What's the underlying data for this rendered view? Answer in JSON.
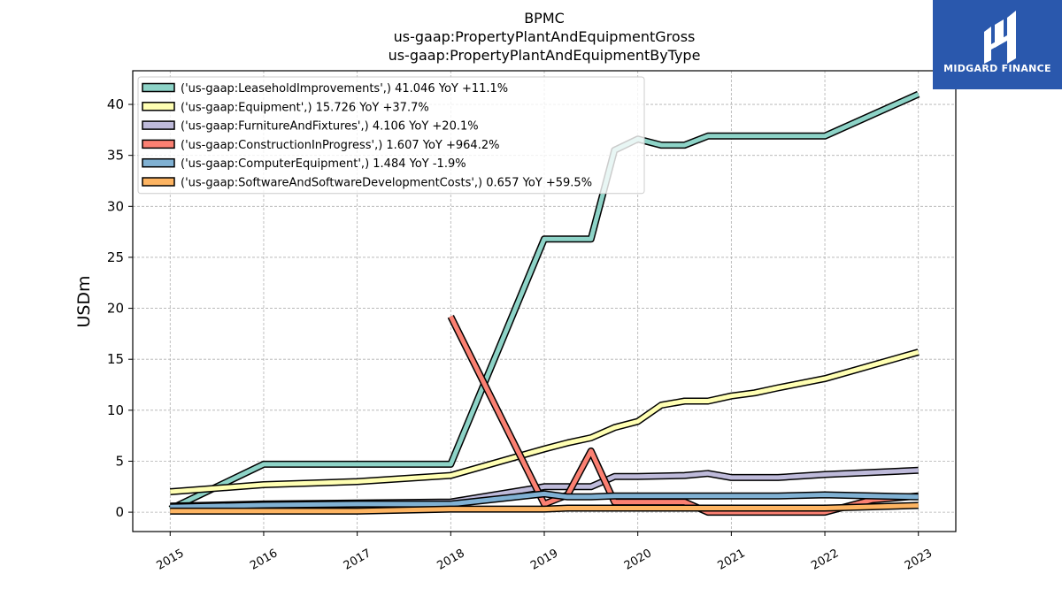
{
  "chart_data": {
    "type": "line",
    "title": [
      "BPMC",
      "us-gaap:PropertyPlantAndEquipmentGross",
      "us-gaap:PropertyPlantAndEquipmentByType"
    ],
    "ylabel": "USDm",
    "xlabel": "",
    "xlim": [
      2014.6,
      2023.4
    ],
    "ylim": [
      -1.9,
      43.3
    ],
    "x_ticks": [
      "2015",
      "2016",
      "2017",
      "2018",
      "2019",
      "2020",
      "2021",
      "2022",
      "2023"
    ],
    "y_ticks": [
      "0",
      "5",
      "10",
      "15",
      "20",
      "25",
      "30",
      "35",
      "40"
    ],
    "grid": true,
    "legend_position": "top-left",
    "colors": {
      "leasehold": "#8dd3c7",
      "equipment": "#ffffb3",
      "furniture": "#bebada",
      "construction": "#fb8072",
      "computer": "#80b1d3",
      "software": "#fdb462"
    },
    "series": [
      {
        "name": "('us-gaap:LeaseholdImprovements',) 41.046 YoY +11.1%",
        "color": "#8dd3c7",
        "points": [
          [
            2015.0,
            0.3
          ],
          [
            2016.0,
            4.7
          ],
          [
            2018.0,
            4.7
          ],
          [
            2019.0,
            26.8
          ],
          [
            2019.5,
            26.8
          ],
          [
            2019.75,
            35.5
          ],
          [
            2020.0,
            36.6
          ],
          [
            2020.25,
            36.0
          ],
          [
            2020.5,
            36.0
          ],
          [
            2020.75,
            36.9
          ],
          [
            2022.0,
            36.9
          ],
          [
            2023.0,
            41.0
          ]
        ]
      },
      {
        "name": "('us-gaap:Equipment',) 15.726 YoY +37.7%",
        "color": "#ffffb3",
        "points": [
          [
            2015.0,
            2.0
          ],
          [
            2016.0,
            2.7
          ],
          [
            2017.0,
            3.0
          ],
          [
            2018.0,
            3.6
          ],
          [
            2019.0,
            6.2
          ],
          [
            2019.25,
            6.8
          ],
          [
            2019.5,
            7.3
          ],
          [
            2019.75,
            8.3
          ],
          [
            2020.0,
            8.9
          ],
          [
            2020.25,
            10.5
          ],
          [
            2020.5,
            10.9
          ],
          [
            2020.75,
            10.9
          ],
          [
            2021.0,
            11.4
          ],
          [
            2021.25,
            11.7
          ],
          [
            2021.5,
            12.2
          ],
          [
            2022.0,
            13.1
          ],
          [
            2023.0,
            15.7
          ]
        ]
      },
      {
        "name": "('us-gaap:FurnitureAndFixtures',) 4.106 YoY +20.1%",
        "color": "#bebada",
        "points": [
          [
            2015.0,
            0.6
          ],
          [
            2016.0,
            0.8
          ],
          [
            2017.0,
            0.9
          ],
          [
            2018.0,
            1.0
          ],
          [
            2019.0,
            2.5
          ],
          [
            2019.5,
            2.5
          ],
          [
            2019.75,
            3.5
          ],
          [
            2020.0,
            3.5
          ],
          [
            2020.5,
            3.6
          ],
          [
            2020.75,
            3.8
          ],
          [
            2021.0,
            3.4
          ],
          [
            2021.5,
            3.4
          ],
          [
            2022.0,
            3.7
          ],
          [
            2023.0,
            4.1
          ]
        ]
      },
      {
        "name": "('us-gaap:ConstructionInProgress',) 1.607 YoY +964.2%",
        "color": "#fb8072",
        "points": [
          [
            2018.0,
            19.2
          ],
          [
            2019.0,
            0.8
          ],
          [
            2019.25,
            1.7
          ],
          [
            2019.5,
            6.0
          ],
          [
            2019.75,
            1.0
          ],
          [
            2020.5,
            1.0
          ],
          [
            2020.75,
            0.0
          ],
          [
            2022.0,
            0.0
          ],
          [
            2022.5,
            1.2
          ],
          [
            2023.0,
            1.6
          ]
        ]
      },
      {
        "name": "('us-gaap:ComputerEquipment',) 1.484 YoY -1.9%",
        "color": "#80b1d3",
        "points": [
          [
            2015.0,
            0.5
          ],
          [
            2016.0,
            0.7
          ],
          [
            2017.0,
            0.8
          ],
          [
            2018.0,
            0.8
          ],
          [
            2019.0,
            1.8
          ],
          [
            2019.25,
            1.5
          ],
          [
            2019.5,
            1.5
          ],
          [
            2019.75,
            1.6
          ],
          [
            2021.0,
            1.6
          ],
          [
            2021.5,
            1.6
          ],
          [
            2022.0,
            1.7
          ],
          [
            2023.0,
            1.5
          ]
        ]
      },
      {
        "name": "('us-gaap:SoftwareAndSoftwareDevelopmentCosts',) 0.657 YoY +59.5%",
        "color": "#fdb462",
        "points": [
          [
            2015.0,
            0.1
          ],
          [
            2016.0,
            0.1
          ],
          [
            2017.0,
            0.1
          ],
          [
            2018.0,
            0.3
          ],
          [
            2019.0,
            0.3
          ],
          [
            2019.25,
            0.4
          ],
          [
            2020.0,
            0.4
          ],
          [
            2020.75,
            0.4
          ],
          [
            2021.0,
            0.4
          ],
          [
            2022.0,
            0.4
          ],
          [
            2023.0,
            0.66
          ]
        ]
      }
    ]
  },
  "logo": {
    "text": "MIDGARD FINANCE"
  }
}
